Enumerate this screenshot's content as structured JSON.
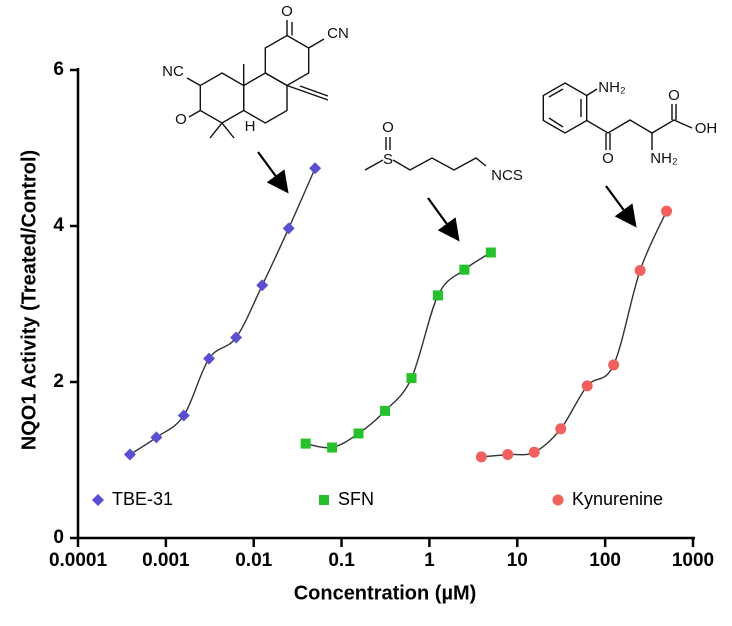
{
  "chart_data": {
    "type": "scatter",
    "x_label": "Concentration (µM)",
    "y_label": "NQO1 Activity (Treated/Control)",
    "log_x": true,
    "xlim": [
      0.0001,
      1000
    ],
    "xticks": [
      0.0001,
      0.001,
      0.01,
      0.1,
      1,
      10,
      100,
      1000
    ],
    "ylim": [
      0,
      6
    ],
    "yticks": [
      0,
      2,
      4,
      6
    ],
    "series": [
      {
        "name": "TBE-31",
        "color": "#5a4fd1",
        "marker": "diamond",
        "x": [
          0.00039,
          0.00078,
          0.0016,
          0.0031,
          0.0063,
          0.0125,
          0.025,
          0.05
        ],
        "values": [
          1.07,
          1.29,
          1.57,
          2.3,
          2.57,
          3.24,
          3.97,
          4.74
        ]
      },
      {
        "name": "SFN",
        "color": "#25c02c",
        "marker": "square",
        "x": [
          0.039,
          0.078,
          0.156,
          0.3125,
          0.625,
          1.25,
          2.5,
          5
        ],
        "values": [
          1.21,
          1.16,
          1.34,
          1.63,
          2.05,
          3.11,
          3.44,
          3.66
        ]
      },
      {
        "name": "Kynurenine",
        "color": "#f0605e",
        "marker": "circle",
        "x": [
          3.9,
          7.8,
          15.6,
          31.25,
          62.5,
          125,
          250,
          500
        ],
        "values": [
          1.04,
          1.07,
          1.1,
          1.4,
          1.95,
          2.22,
          3.43,
          4.19
        ]
      }
    ],
    "structures": [
      {
        "labels": [
          "NC",
          "O",
          "CN",
          "O",
          "H"
        ]
      },
      {
        "labels": [
          "S",
          "O",
          "NCS"
        ]
      },
      {
        "labels": [
          "NH₂",
          "O",
          "O",
          "OH",
          "NH₂"
        ]
      }
    ]
  }
}
